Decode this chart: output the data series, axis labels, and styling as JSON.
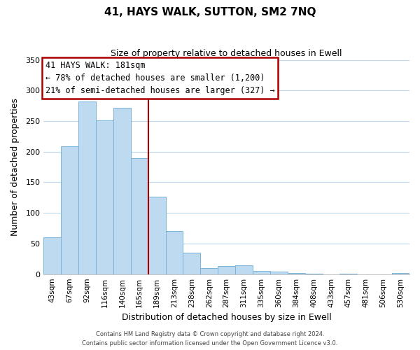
{
  "title": "41, HAYS WALK, SUTTON, SM2 7NQ",
  "subtitle": "Size of property relative to detached houses in Ewell",
  "xlabel": "Distribution of detached houses by size in Ewell",
  "ylabel": "Number of detached properties",
  "categories": [
    "43sqm",
    "67sqm",
    "92sqm",
    "116sqm",
    "140sqm",
    "165sqm",
    "189sqm",
    "213sqm",
    "238sqm",
    "262sqm",
    "287sqm",
    "311sqm",
    "335sqm",
    "360sqm",
    "384sqm",
    "408sqm",
    "433sqm",
    "457sqm",
    "481sqm",
    "506sqm",
    "530sqm"
  ],
  "values": [
    60,
    209,
    282,
    251,
    272,
    189,
    126,
    70,
    35,
    10,
    13,
    14,
    5,
    4,
    2,
    1,
    0,
    1,
    0,
    0,
    2
  ],
  "bar_color": "#bedaf0",
  "bar_edge_color": "#7ab4d8",
  "ylim": [
    0,
    350
  ],
  "yticks": [
    0,
    50,
    100,
    150,
    200,
    250,
    300,
    350
  ],
  "annotation_title": "41 HAYS WALK: 181sqm",
  "annotation_line1": "← 78% of detached houses are smaller (1,200)",
  "annotation_line2": "21% of semi-detached houses are larger (327) →",
  "annotation_box_color": "#ffffff",
  "annotation_box_edge": "#aa0000",
  "footer_line1": "Contains HM Land Registry data © Crown copyright and database right 2024.",
  "footer_line2": "Contains public sector information licensed under the Open Government Licence v3.0.",
  "vertical_line_x": 5.5,
  "red_line_color": "#aa0000",
  "background_color": "#ffffff",
  "grid_color": "#c0d8ee"
}
